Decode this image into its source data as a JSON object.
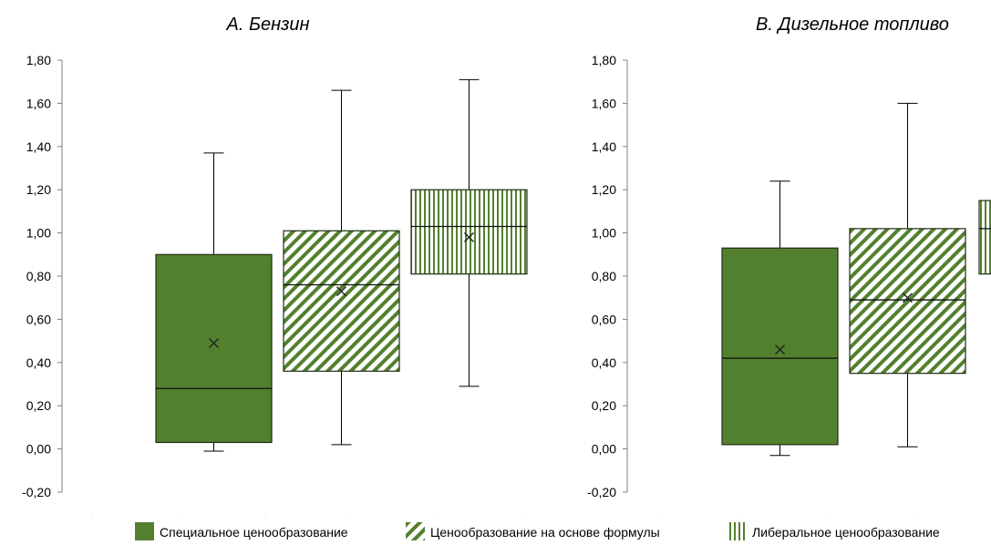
{
  "colors": {
    "green": "#53802f",
    "frame": "#1f2d12",
    "line": "#000000"
  },
  "legend": [
    {
      "label": "Специальное ценообразование",
      "pattern": "solid"
    },
    {
      "label": "Ценообразование на основе формулы",
      "pattern": "diagonal"
    },
    {
      "label": "Либеральное ценообразование",
      "pattern": "vertical"
    }
  ],
  "chart_data": [
    {
      "type": "box",
      "title": "A. Бензин",
      "ylim": [
        -0.2,
        1.8
      ],
      "yticks": [
        "-0,20",
        "0,00",
        "0,20",
        "0,40",
        "0,60",
        "0,80",
        "1,00",
        "1,20",
        "1,40",
        "1,60",
        "1,80"
      ],
      "series": [
        {
          "name": "Специальное ценообразование",
          "min": -0.01,
          "q1": 0.03,
          "median": 0.28,
          "q3": 0.9,
          "max": 1.37,
          "mean": 0.49
        },
        {
          "name": "Ценообразование на основе формулы",
          "min": 0.02,
          "q1": 0.36,
          "median": 0.76,
          "q3": 1.01,
          "max": 1.66,
          "mean": 0.73
        },
        {
          "name": "Либеральное ценообразование",
          "min": 0.29,
          "q1": 0.81,
          "median": 1.03,
          "q3": 1.2,
          "max": 1.71,
          "mean": 0.98
        }
      ]
    },
    {
      "type": "box",
      "title": "B. Дизельное топливо",
      "ylim": [
        -0.2,
        1.8
      ],
      "yticks": [
        "-0,20",
        "0,00",
        "0,20",
        "0,40",
        "0,60",
        "0,80",
        "1,00",
        "1,20",
        "1,40",
        "1,60",
        "1,80"
      ],
      "series": [
        {
          "name": "Специальное ценообразование",
          "min": -0.03,
          "q1": 0.02,
          "median": 0.42,
          "q3": 0.93,
          "max": 1.24,
          "mean": 0.46
        },
        {
          "name": "Ценообразование на основе формулы",
          "min": 0.01,
          "q1": 0.35,
          "median": 0.69,
          "q3": 1.02,
          "max": 1.6,
          "mean": 0.7
        },
        {
          "name": "Либеральное ценообразование",
          "min": null,
          "q1": 0.81,
          "median": 1.02,
          "q3": 1.15,
          "max": null,
          "mean": null
        }
      ]
    }
  ]
}
